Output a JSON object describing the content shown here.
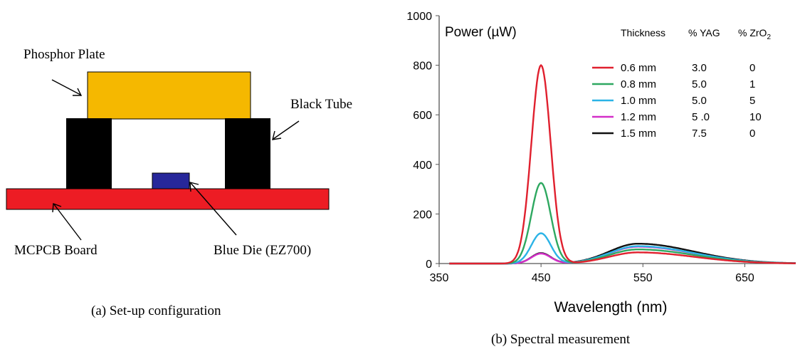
{
  "figure_a": {
    "caption": "(a) Set-up configuration",
    "labels": {
      "phosphor_plate": "Phosphor Plate",
      "black_tube": "Black Tube",
      "mcpcb_board": "MCPCB Board",
      "blue_die": "Blue Die (EZ700)"
    },
    "colors": {
      "phosphor_plate": "#f5b800",
      "black_tube": "#000000",
      "mcpcb_board": "#ed1c24",
      "blue_die": "#27279a"
    }
  },
  "figure_b": {
    "caption": "(b) Spectral measurement"
  },
  "chart_data": {
    "type": "line",
    "title": "Power (µW)",
    "xlabel": "Wavelength (nm)",
    "ylabel": "",
    "xlim": [
      350,
      700
    ],
    "ylim": [
      0,
      1000
    ],
    "x_ticks": [
      350,
      450,
      550,
      650
    ],
    "y_ticks": [
      0,
      200,
      400,
      600,
      800,
      1000
    ],
    "grid": false,
    "legend": {
      "placement": "top-right",
      "headers": [
        "Thickness",
        "% YAG",
        "% ZrO2"
      ],
      "zro2_header_base": "% ZrO",
      "zro2_header_sub": "2"
    },
    "series": [
      {
        "name": "0.6 mm",
        "yag": "3.0",
        "zro2": "0",
        "color": "#e0202e",
        "peak": 800,
        "broad": 45
      },
      {
        "name": "0.8 mm",
        "yag": "5.0",
        "zro2": "1",
        "color": "#2ea860",
        "peak": 325,
        "broad": 57
      },
      {
        "name": "1.0 mm",
        "yag": "5.0",
        "zro2": "5",
        "color": "#2bb3e6",
        "peak": 122,
        "broad": 70
      },
      {
        "name": "1.2 mm",
        "yag": "5 .0",
        "zro2": "10",
        "color": "#d42fc8",
        "peak": 40,
        "broad": 68
      },
      {
        "name": "1.5 mm",
        "yag": "7.5",
        "zro2": "0",
        "color": "#111111",
        "peak": 42,
        "broad": 80
      }
    ],
    "shape": {
      "blue_peak_nm": 450,
      "blue_sigma_nm": 9.5,
      "yellow_peak_nm": 545,
      "yellow_sigma_left_nm": 28,
      "yellow_sigma_right_nm": 55
    }
  }
}
